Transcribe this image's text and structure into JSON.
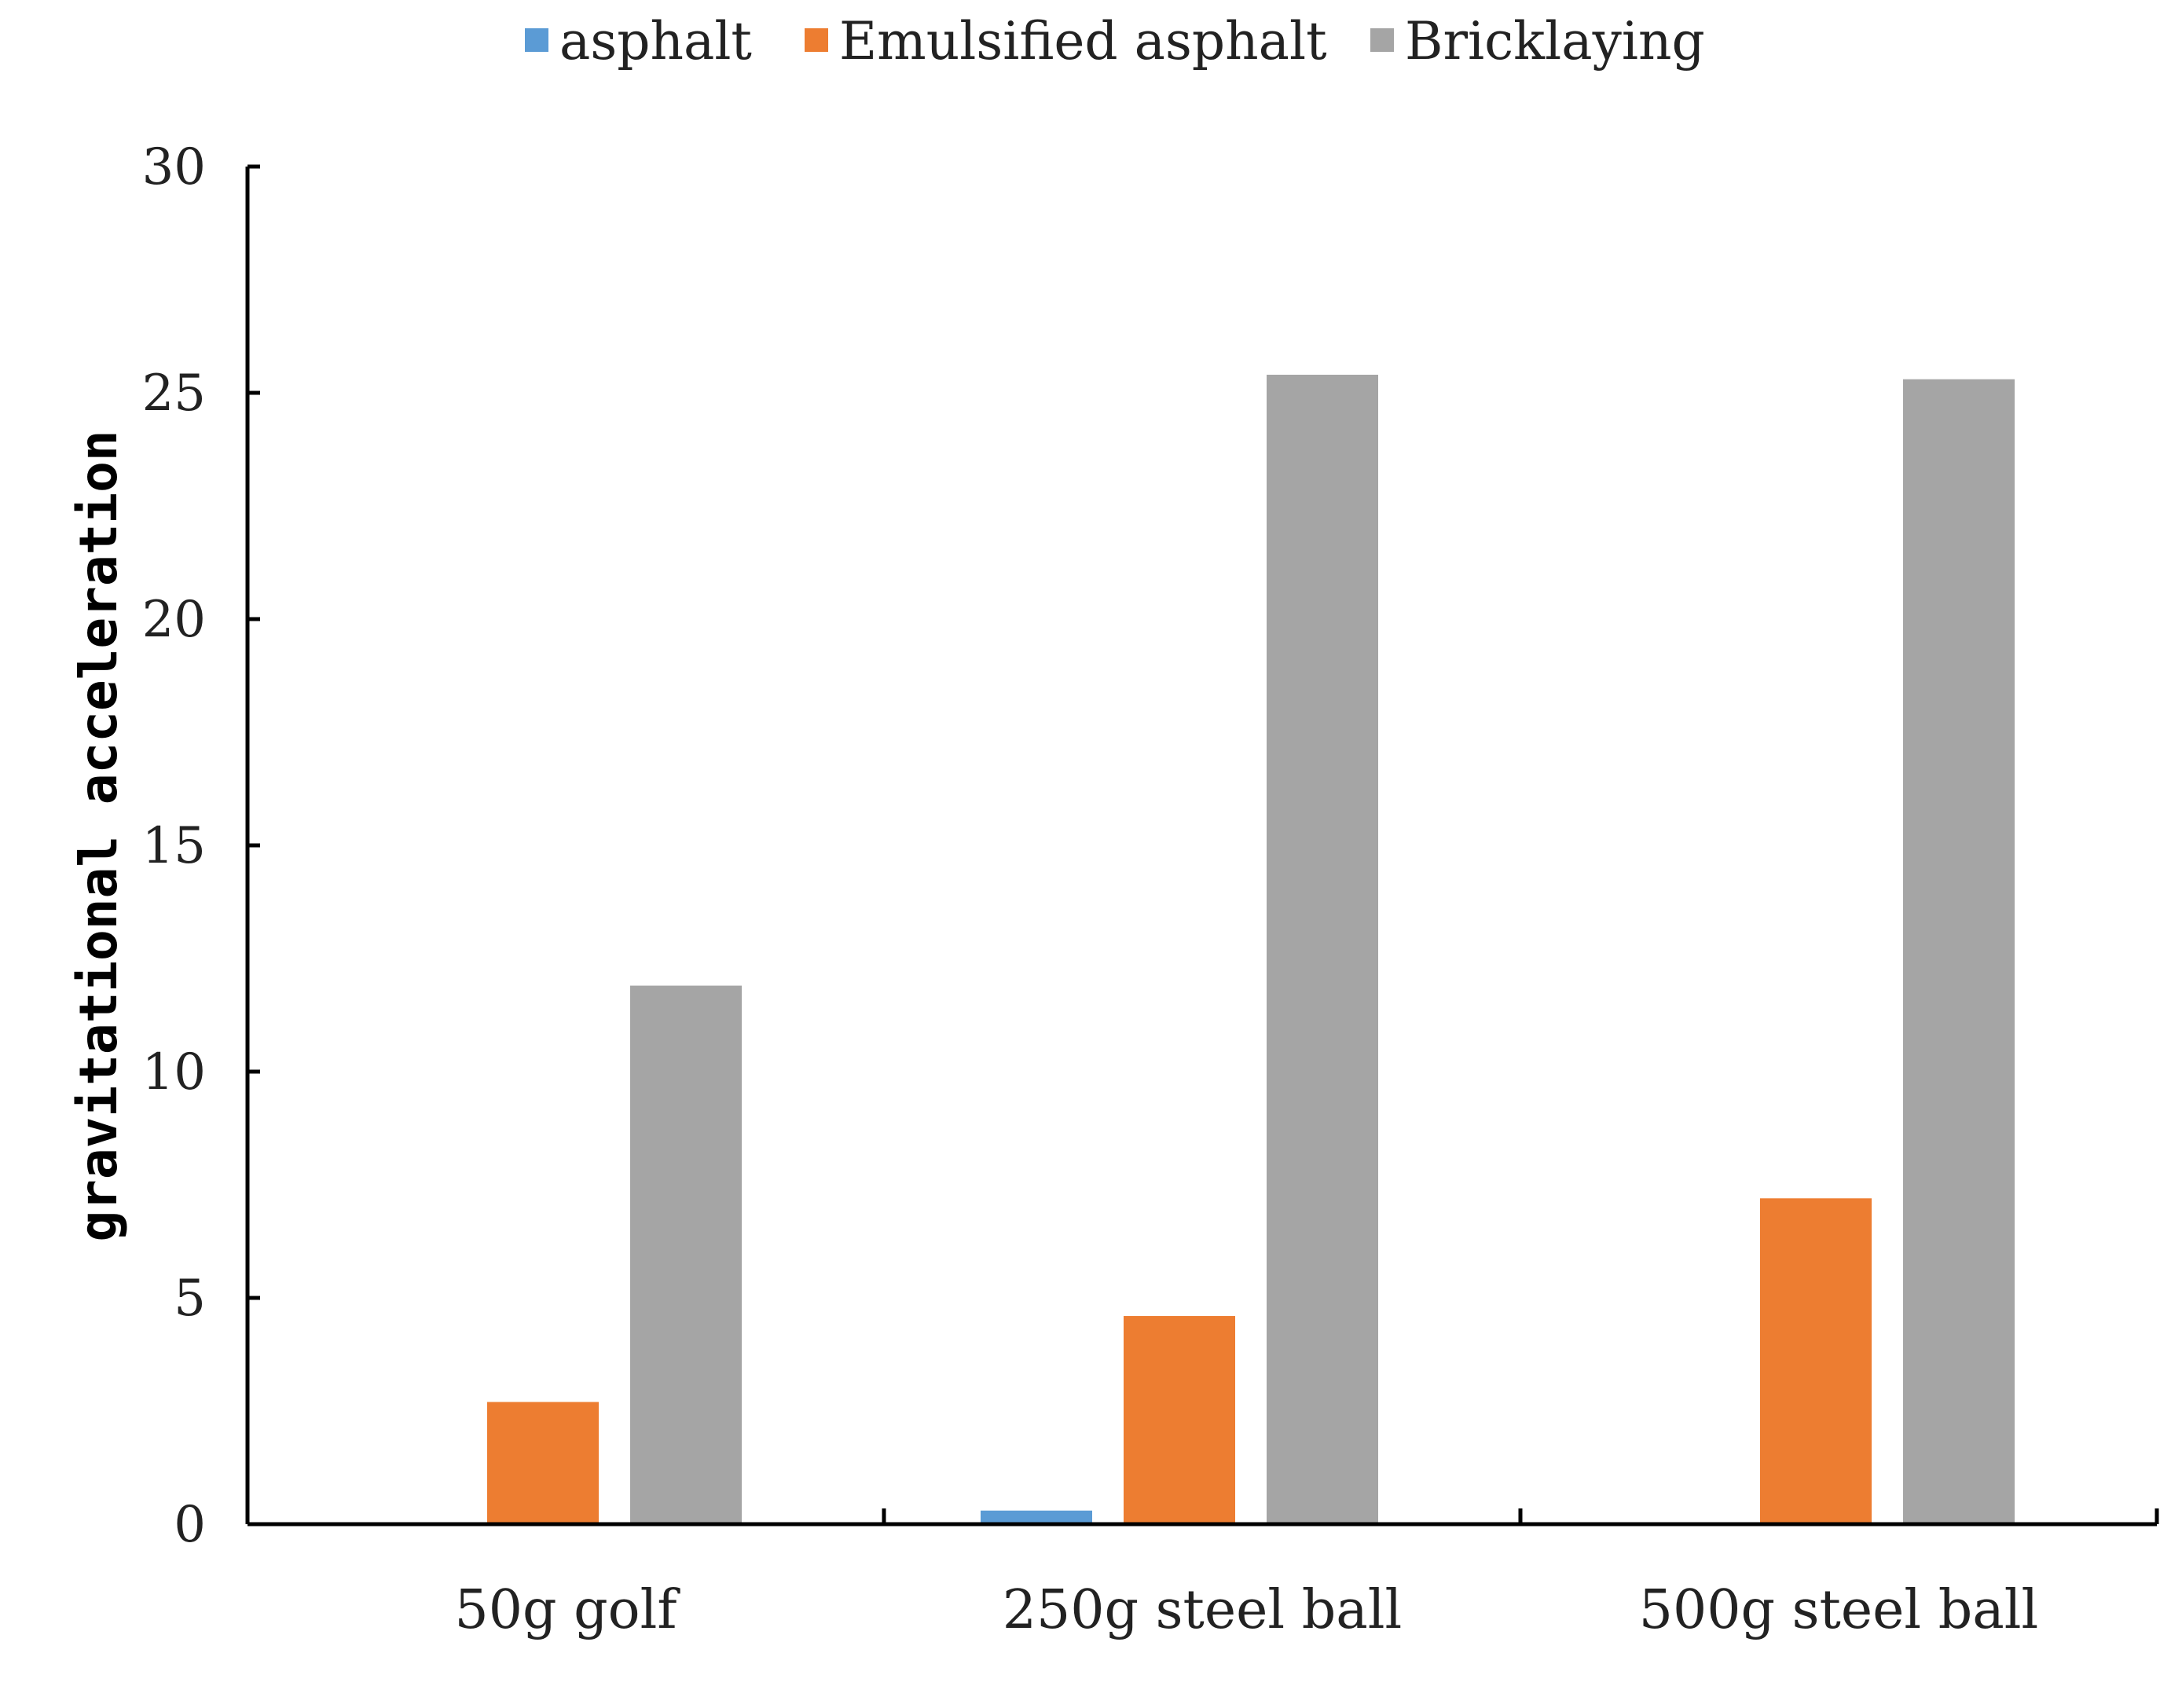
{
  "chart_data": {
    "type": "bar",
    "title": "",
    "xlabel": "",
    "ylabel": "gravitational acceleration",
    "ylim": [
      0,
      30
    ],
    "yticks": [
      "0",
      "5",
      "10",
      "15",
      "20",
      "25",
      "30"
    ],
    "categories": [
      "50g golf",
      "250g steel ball",
      "500g steel ball"
    ],
    "series": [
      {
        "name": "asphalt",
        "color": "#5B9BD5",
        "values": [
          0,
          0.3,
          0
        ]
      },
      {
        "name": "Emulsified asphalt",
        "color": "#ED7D31",
        "values": [
          2.7,
          4.6,
          7.2
        ]
      },
      {
        "name": "Bricklaying",
        "color": "#A5A5A5",
        "values": [
          11.9,
          25.4,
          25.3
        ]
      }
    ],
    "grid": false,
    "legend": "top-center"
  }
}
